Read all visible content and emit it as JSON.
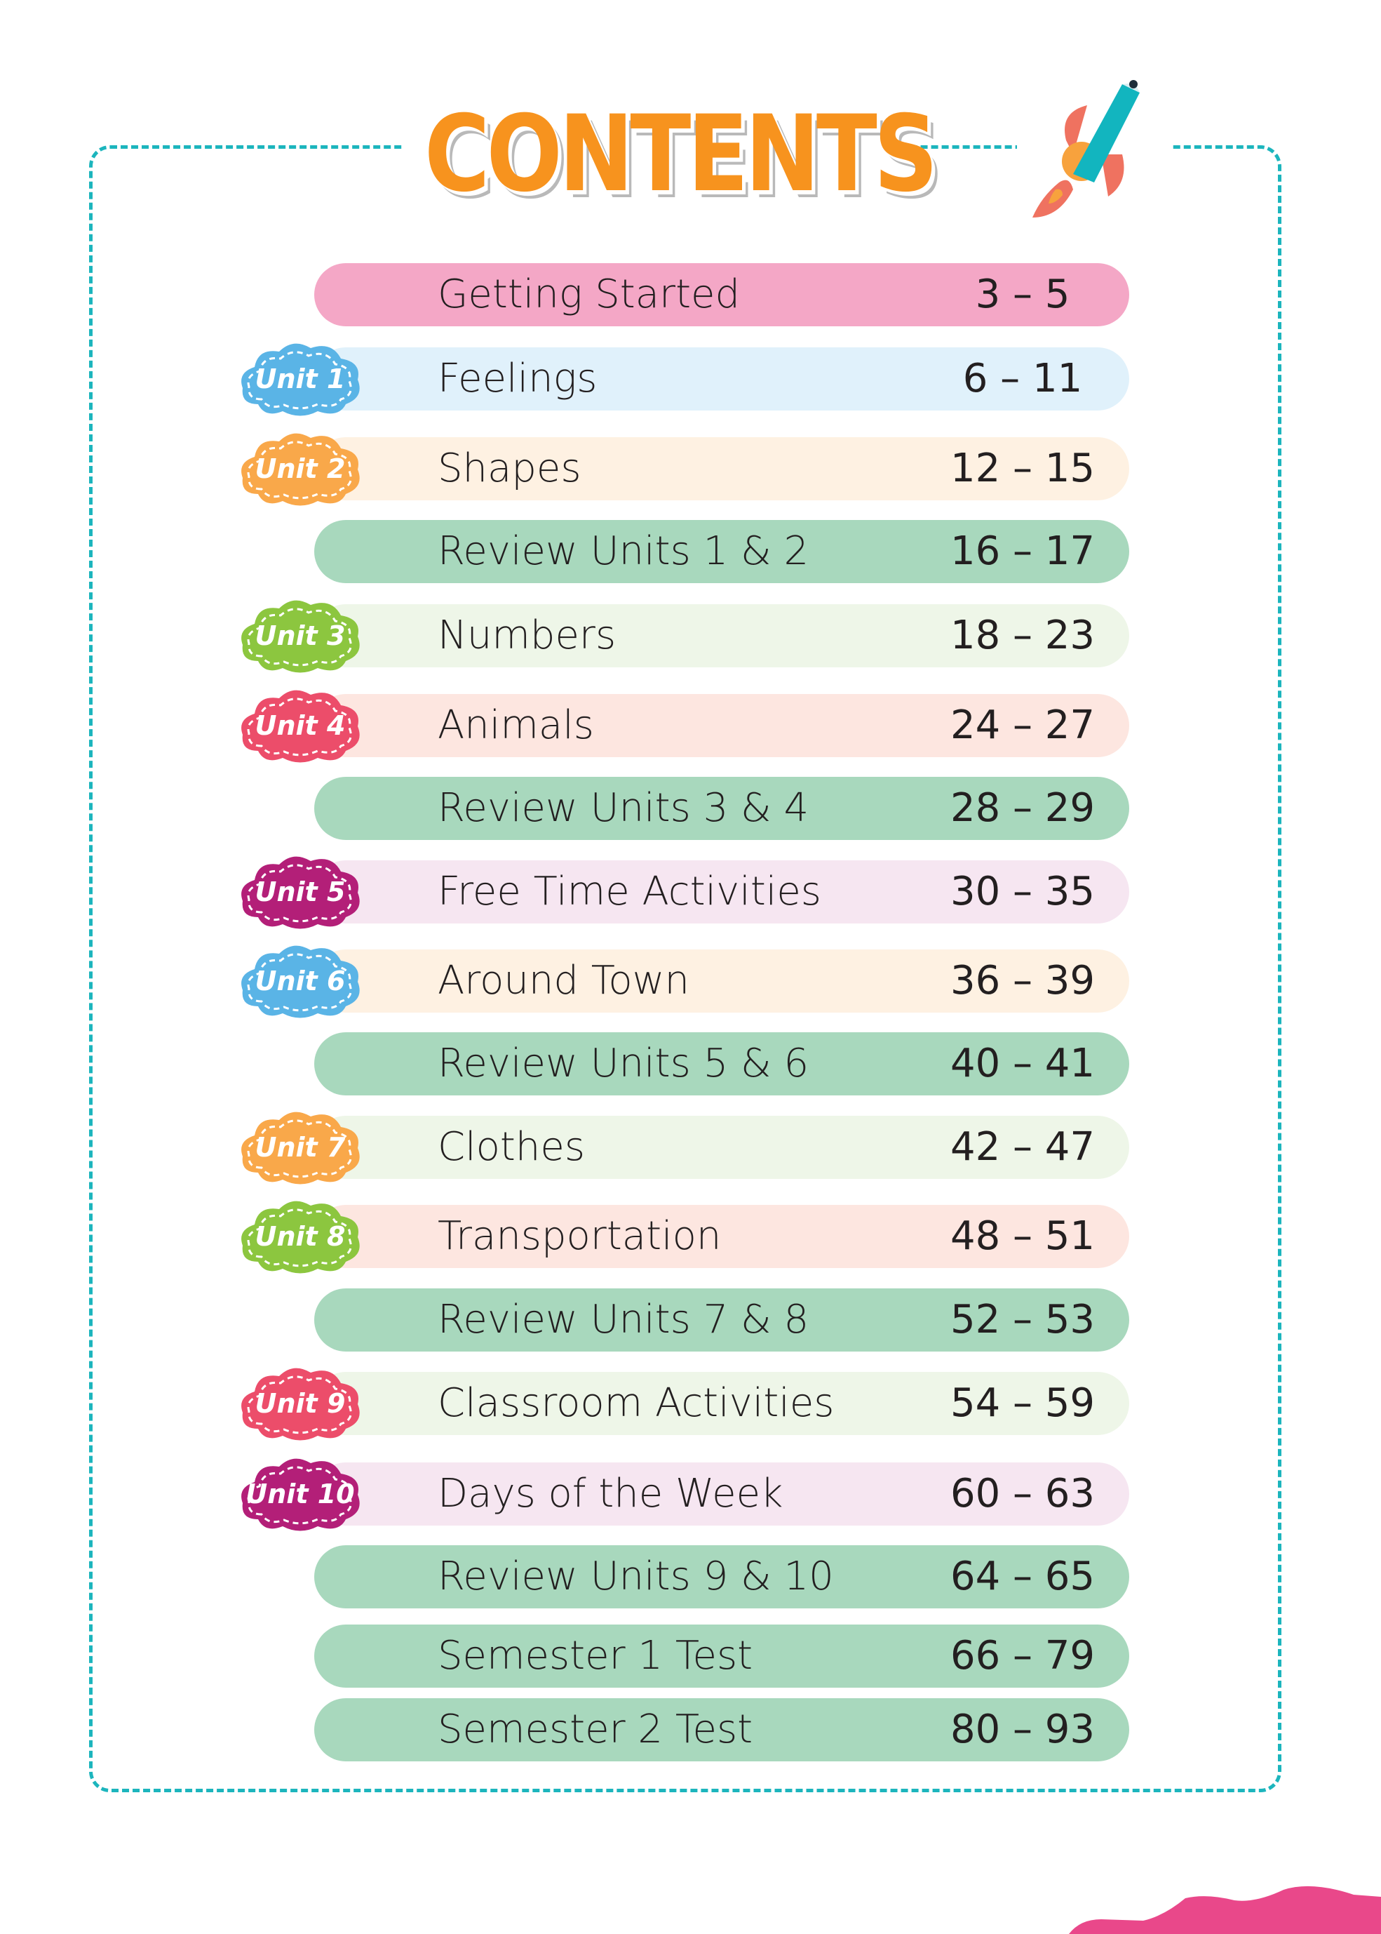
{
  "title": "CONTENTS",
  "rows": [
    {
      "label": "Getting Started",
      "pages": "3 – 5",
      "bg": "#f4a7c6"
    },
    {
      "unit": "Unit 1",
      "unit_color": "#5ab4e6",
      "label": "Feelings",
      "pages": "6 – 11",
      "bg": "#e0f1fb"
    },
    {
      "unit": "Unit 2",
      "unit_color": "#f9a84a",
      "label": "Shapes",
      "pages": "12 – 15",
      "bg": "#fef1e2"
    },
    {
      "label": "Review Units 1 & 2",
      "pages": "16 – 17",
      "bg": "#a8d8bd"
    },
    {
      "unit": "Unit 3",
      "unit_color": "#8cc63f",
      "label": "Numbers",
      "pages": "18 – 23",
      "bg": "#eef6e8"
    },
    {
      "unit": "Unit 4",
      "unit_color": "#ec4d6a",
      "label": "Animals",
      "pages": "24 – 27",
      "bg": "#fde6e0"
    },
    {
      "label": "Review Units 3 & 4",
      "pages": "28 – 29",
      "bg": "#a8d8bd"
    },
    {
      "unit": "Unit 5",
      "unit_color": "#b31f78",
      "label": "Free Time Activities",
      "pages": "30 – 35",
      "bg": "#f6e6f1"
    },
    {
      "unit": "Unit 6",
      "unit_color": "#5ab4e6",
      "label": "Around Town",
      "pages": "36 – 39",
      "bg": "#fef1e2"
    },
    {
      "label": "Review Units 5 & 6",
      "pages": "40 – 41",
      "bg": "#a8d8bd"
    },
    {
      "unit": "Unit 7",
      "unit_color": "#f9a84a",
      "label": "Clothes",
      "pages": "42 – 47",
      "bg": "#eef6e8"
    },
    {
      "unit": "Unit 8",
      "unit_color": "#8cc63f",
      "label": "Transportation",
      "pages": "48 – 51",
      "bg": "#fde6e0"
    },
    {
      "label": "Review Units 7 & 8",
      "pages": "52 – 53",
      "bg": "#a8d8bd"
    },
    {
      "unit": "Unit 9",
      "unit_color": "#ec4d6a",
      "label": "Classroom Activities",
      "pages": "54 – 59",
      "bg": "#eef6e8"
    },
    {
      "unit": "Unit 10",
      "unit_color": "#b31f78",
      "label": "Days of the Week",
      "pages": "60 – 63",
      "bg": "#f6e6f1"
    },
    {
      "label": "Review Units 9 & 10",
      "pages": "64 – 65",
      "bg": "#a8d8bd"
    },
    {
      "label": "Semester 1 Test",
      "pages": "66 – 79",
      "bg": "#a8d8bd"
    },
    {
      "label": "Semester 2 Test",
      "pages": "80 – 93",
      "bg": "#a8d8bd"
    }
  ],
  "colors": {
    "frame": "#1cb5bd",
    "title": "#f7931e",
    "wave": "#e9488a"
  }
}
